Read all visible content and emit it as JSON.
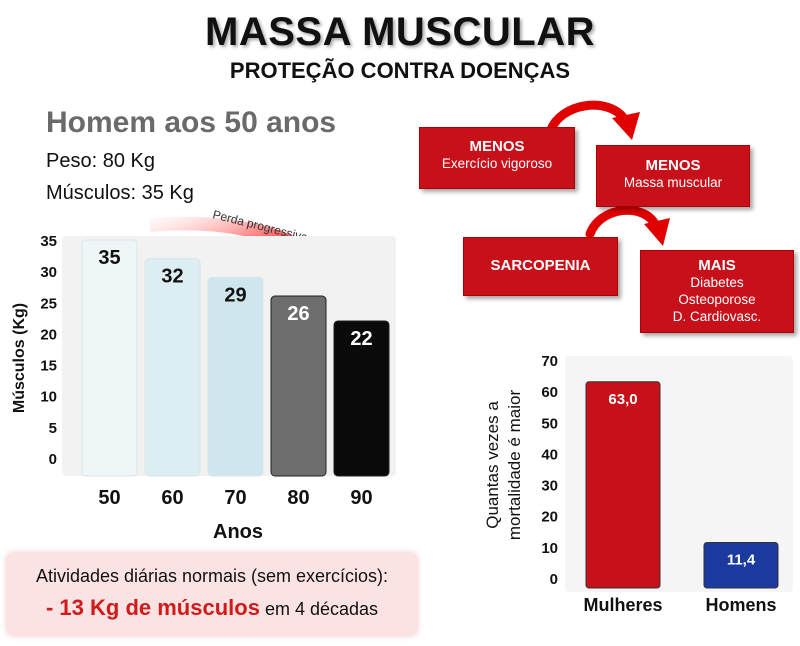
{
  "header": {
    "title": "MASSA MUSCULAR",
    "subtitle": "PROTEÇÃO CONTRA DOENÇAS"
  },
  "profile": {
    "heading": "Homem aos 50 anos",
    "weight": "Peso: 80 Kg",
    "muscles": "Músculos: 35 Kg"
  },
  "arrow_label": "Perda progressiva",
  "note": {
    "line1": "Atividades diárias normais (sem exercícios):",
    "highlight": "- 13 Kg de músculos",
    "suffix": " em 4 décadas"
  },
  "flow": {
    "box1": {
      "title": "MENOS",
      "sub": "Exercício vigoroso"
    },
    "box2": {
      "title": "MENOS",
      "sub": "Massa muscular"
    },
    "box3": {
      "title": "SARCOPENIA"
    },
    "box4": {
      "title": "MAIS",
      "lines": [
        "Diabetes",
        "Osteoporose",
        "D. Cardiovasc."
      ]
    }
  },
  "chart_data": [
    {
      "type": "bar",
      "categories": [
        "50",
        "60",
        "70",
        "80",
        "90"
      ],
      "values": [
        35,
        32,
        29,
        26,
        22
      ],
      "data_labels": [
        "35",
        "32",
        "29",
        "26",
        "22"
      ],
      "xlabel": "Anos",
      "ylabel": "Músculos (Kg)",
      "yticks": [
        0,
        5,
        10,
        15,
        20,
        25,
        30,
        35
      ],
      "ylim": [
        0,
        35
      ],
      "bar_colors": [
        "#eef6f8",
        "#ddeef3",
        "#cfe6ee",
        "#6e6e6e",
        "#0a0a0a"
      ],
      "label_colors": [
        "#111111",
        "#111111",
        "#111111",
        "#ffffff",
        "#ffffff"
      ],
      "grid": false
    },
    {
      "type": "bar",
      "categories": [
        "Mulheres",
        "Homens"
      ],
      "values": [
        63.0,
        11.4
      ],
      "data_labels": [
        "63,0",
        "11,4"
      ],
      "ylabel_lines": [
        "Quantas vezes a",
        "mortalidade é maior"
      ],
      "yticks": [
        0,
        10,
        20,
        30,
        40,
        50,
        60,
        70
      ],
      "ylim": [
        0,
        70
      ],
      "bar_colors": [
        "#c8101a",
        "#1a3aa0"
      ],
      "grid": false
    }
  ],
  "colors": {
    "accent_red": "#c8101a",
    "blue": "#1a3aa0"
  }
}
